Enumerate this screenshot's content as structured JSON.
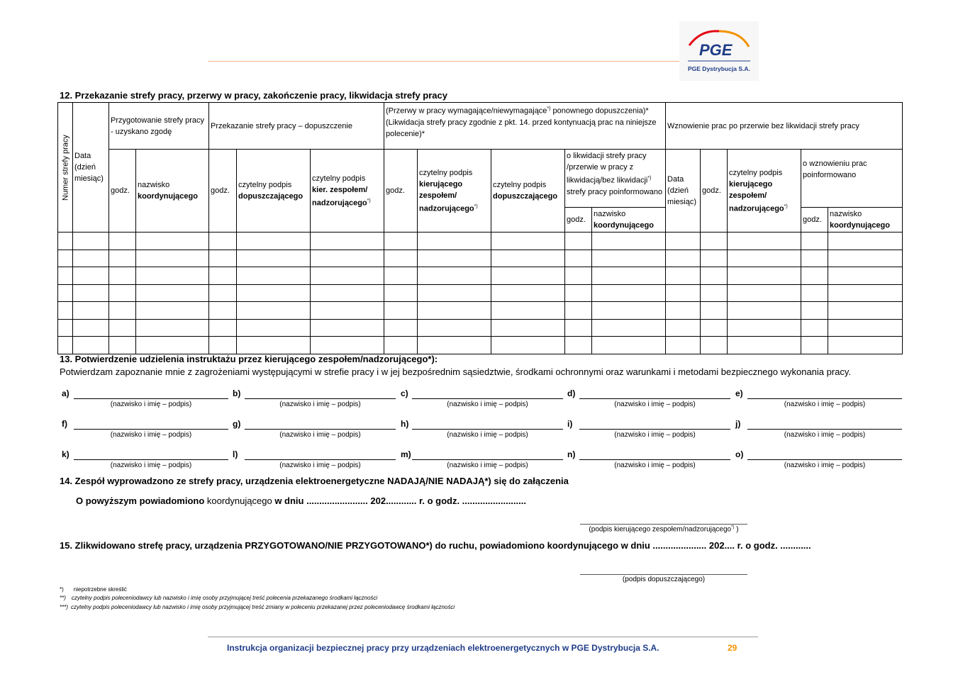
{
  "header": {
    "logo_text": "PGE",
    "logo_subtitle": "PGE Dystrybucja S.A.",
    "colors": {
      "red": "#e30613",
      "orange": "#f39200",
      "navy": "#1f3c88"
    }
  },
  "section12": {
    "title": "12.   Przekazanie strefy pracy, przerwy w pracy, zakończenie pracy, likwidacja strefy pracy",
    "h_numer": "Numer strefy pracy",
    "h_data": "Data (dzień miesiąc)",
    "h_przygotowanie": "Przygotowanie strefy pracy - uzyskano zgodę",
    "h_przekazanie": "Przekazanie strefy pracy – dopuszczenie",
    "h_przerwy_1": "(Przerwy w pracy wymagające/niewymagające",
    "h_przerwy_sup": "*)",
    "h_przerwy_2": " ponownego dopuszczenia)*",
    "h_przerwy_3": "(Likwidacja strefy pracy zgodnie z pkt. 14. przed kontynuacją prac na niniejsze polecenie)*",
    "h_wznowienie": "Wznowienie prac po przerwie bez likwidacji strefy pracy",
    "godz": "godz.",
    "nazwisko": "nazwisko",
    "koordynujacego": "koordynującego",
    "czytelny_podpis": "czytelny podpis",
    "dopuszczajacego": "dopuszczającego",
    "kier_zespolem": "kier. zespołem/",
    "kierujacego": "kierującego",
    "zespolem": "zespołem/",
    "nadzorujacego": "nadzorującego",
    "sup": "*)",
    "o_likwidacji_1": "o likwidacji strefy pracy /przerwie w pracy z likwidacją/bez likwidacji",
    "o_likwidacji_2": " strefy pracy poinformowano",
    "o_wznowieniu": "o wznowieniu prac poinformowano",
    "data_rows": 7
  },
  "section13": {
    "title": "13.   Potwierdzenie udzielenia instruktażu przez kierującego zespołem/nadzorującego*):",
    "text": "Potwierdzam zapoznanie mnie z zagrożeniami występującymi w strefie pracy i w jej bezpośrednim  sąsiedztwie, środkami ochronnymi oraz warunkami i metodami bezpiecznego wykonania pracy.",
    "caption": "(nazwisko i imię – podpis)",
    "labels": [
      "a)",
      "b)",
      "c)",
      "d)",
      "e)",
      "f)",
      "g)",
      "h)",
      "i)",
      "j)",
      "k)",
      "l)",
      "m)",
      "n)",
      "o)"
    ]
  },
  "section14": {
    "title": "14.   Zespół wyprowadzono ze strefy pracy, urządzenia elektroenergetyczne NADAJĄ/NIE NADAJĄ*)  się do załączenia",
    "line_a": "O powyższym powiadomiono",
    "line_b": " koordynującego ",
    "line_c": "w dniu ........................ 202............ r. o godz. .........................",
    "sig_caption": "(podpis kierującego zespołem/nadzorującego",
    "sig_sup": "*)",
    "sig_end": " )"
  },
  "section15": {
    "title": "15.   Zlikwidowano strefę pracy, urządzenia PRZYGOTOWANO/NIE PRZYGOTOWANO*) do ruchu, powiadomiono koordynującego w dniu ..................... 202.... r. o godz. ............",
    "sig_caption": "(podpis dopuszczającego)"
  },
  "footnotes": [
    {
      "mark": "*)",
      "text": "niepotrzebne skreślić"
    },
    {
      "mark": "**)",
      "text": "czytelny podpis poleceniodawcy lub nazwisko i imię osoby przyjmującej treść polecenia przekazanego środkami łączności"
    },
    {
      "mark": "***)",
      "text": "czytelny podpis poleceniodawcy lub nazwisko i imię osoby przyjmującej treść zmiany w poleceniu przekazanej przez poleceniodawcę środkami łączności"
    }
  ],
  "footer": {
    "title": "Instrukcja organizacji bezpiecznej pracy przy urządzeniach elektroenergetycznych w PGE Dystrybucja S.A.",
    "page": "29"
  }
}
